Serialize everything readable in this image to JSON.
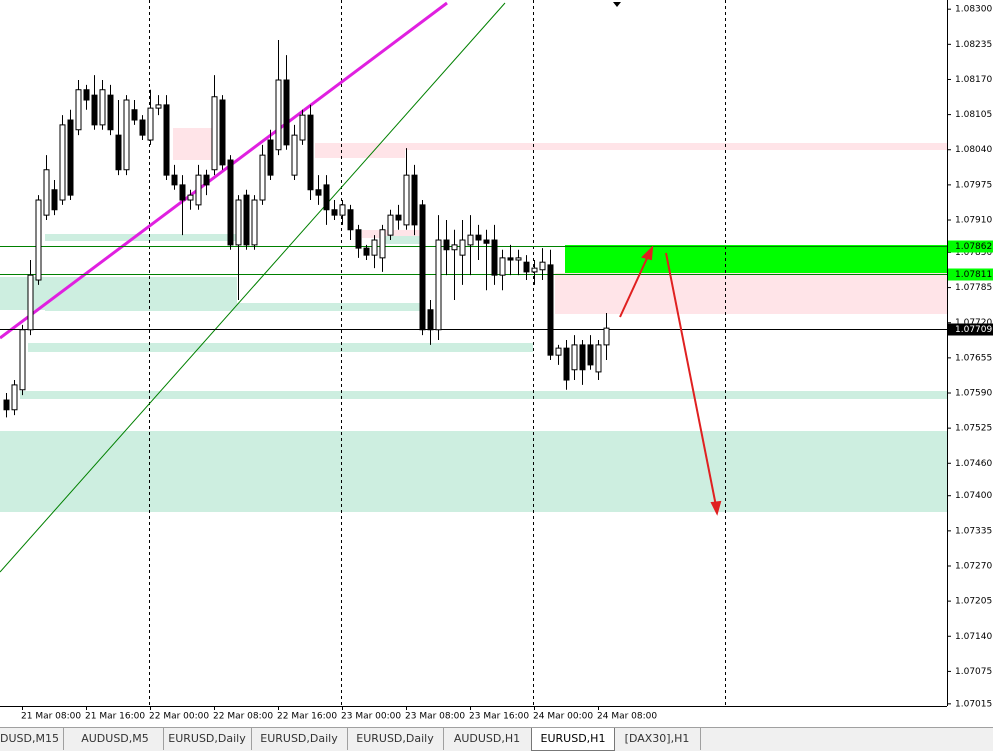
{
  "chart_data": {
    "type": "candlestick",
    "categories": [
      null,
      null,
      "21 Mar 08:00",
      null,
      null,
      null,
      null,
      null,
      null,
      null,
      "21 Mar 16:00",
      null,
      null,
      null,
      null,
      null,
      null,
      null,
      "22 Mar 00:00",
      null,
      null,
      null,
      null,
      null,
      null,
      null,
      "22 Mar 08:00",
      null,
      null,
      null,
      null,
      null,
      null,
      null,
      "22 Mar 16:00",
      null,
      null,
      null,
      null,
      null,
      null,
      null,
      "23 Mar 00:00",
      null,
      null,
      null,
      null,
      null,
      null,
      null,
      "23 Mar 08:00",
      null,
      null,
      null,
      null,
      null,
      null,
      null,
      "23 Mar 16:00",
      null,
      null,
      null,
      null,
      null,
      null,
      null,
      "24 Mar 00:00",
      null,
      null,
      null,
      null,
      null,
      null,
      null,
      "24 Mar 08:00",
      null
    ],
    "open": [
      1.07577,
      1.07559,
      1.07596,
      1.07707,
      1.07799,
      1.07919,
      1.07966,
      1.07947,
      1.08095,
      1.08077,
      1.08151,
      1.08141,
      1.08086,
      1.08141,
      1.08067,
      1.08003,
      1.08114,
      1.08095,
      1.08058,
      1.08117,
      1.08123,
      1.07993,
      1.07975,
      1.07947,
      1.07938,
      1.07993,
      1.08003,
      1.08132,
      1.08021,
      1.07864,
      1.07956,
      1.07864,
      1.07947,
      1.08058,
      1.0804,
      1.08169,
      1.07993,
      1.08058,
      1.08104,
      1.07966,
      1.07975,
      1.07929,
      1.07919,
      1.07929,
      1.07892,
      1.07858,
      1.07845,
      1.0784,
      1.07882,
      1.07919,
      1.07901,
      1.07993,
      1.07938,
      1.07744,
      1.07707,
      1.07873,
      1.07855,
      1.07845,
      1.07864,
      1.07882,
      1.07873,
      1.07873,
      1.07808,
      1.0784,
      1.07836,
      1.07832,
      1.07814,
      1.07818,
      1.07827,
      1.0766,
      1.07673,
      1.07633,
      1.07679,
      1.07679,
      1.07629,
      1.07679
    ],
    "high": [
      1.0759,
      1.07614,
      1.07716,
      1.07836,
      1.07956,
      1.0803,
      1.07984,
      1.08104,
      1.08114,
      1.08169,
      1.0816,
      1.08178,
      1.08169,
      1.0816,
      1.08132,
      1.08141,
      1.08132,
      1.08104,
      1.08151,
      1.08141,
      1.08141,
      1.08012,
      1.07993,
      1.07966,
      1.08012,
      1.08003,
      1.08178,
      1.08141,
      1.0803,
      1.07956,
      1.07966,
      1.07956,
      1.08049,
      1.08077,
      1.08243,
      1.08215,
      1.08086,
      1.08114,
      1.08123,
      1.07993,
      1.07993,
      1.07947,
      1.07947,
      1.07938,
      1.07901,
      1.07864,
      1.07882,
      1.07901,
      1.07929,
      1.07938,
      1.08043,
      1.08012,
      1.07947,
      1.07762,
      1.07919,
      1.0791,
      1.07892,
      1.0791,
      1.07919,
      1.07901,
      1.07892,
      1.07901,
      1.07855,
      1.07864,
      1.07855,
      1.07845,
      1.07836,
      1.07858,
      1.07855,
      1.07679,
      1.07688,
      1.07697,
      1.07688,
      1.07697,
      1.07688,
      1.07738
    ],
    "low": [
      1.07545,
      1.07549,
      1.07586,
      1.07697,
      1.0779,
      1.0791,
      1.07919,
      1.07938,
      1.07947,
      1.08067,
      1.08114,
      1.08077,
      1.08077,
      1.08067,
      1.07993,
      1.07993,
      1.08086,
      1.08058,
      1.08049,
      1.08104,
      1.07984,
      1.07966,
      1.07882,
      1.07929,
      1.07929,
      1.07956,
      1.07993,
      1.08003,
      1.07855,
      1.07762,
      1.07855,
      1.07855,
      1.07938,
      1.07984,
      1.0803,
      1.0804,
      1.07984,
      1.08049,
      1.07947,
      1.07938,
      1.07901,
      1.0791,
      1.07901,
      1.07873,
      1.0784,
      1.07836,
      1.07821,
      1.07814,
      1.07873,
      1.07892,
      1.07892,
      1.07882,
      1.07697,
      1.07679,
      1.07688,
      1.07808,
      1.07762,
      1.0779,
      1.07808,
      1.07836,
      1.0778,
      1.0779,
      1.0778,
      1.07808,
      1.07808,
      1.07799,
      1.0779,
      1.07799,
      1.07651,
      1.07642,
      1.07596,
      1.07614,
      1.07605,
      1.07633,
      1.07614,
      1.07651
    ],
    "close": [
      1.07559,
      1.07605,
      1.07707,
      1.07808,
      1.07947,
      1.08003,
      1.07929,
      1.08086,
      1.07956,
      1.08151,
      1.08132,
      1.08086,
      1.08151,
      1.08077,
      1.08003,
      1.08132,
      1.08095,
      1.08067,
      1.08117,
      1.08123,
      1.07993,
      1.07975,
      1.07947,
      1.07956,
      1.07993,
      1.07975,
      1.08138,
      1.08012,
      1.07864,
      1.07947,
      1.07864,
      1.07947,
      1.0803,
      1.07993,
      1.08169,
      1.08049,
      1.08067,
      1.08104,
      1.07966,
      1.07956,
      1.07929,
      1.07919,
      1.07938,
      1.07892,
      1.07858,
      1.07845,
      1.07873,
      1.07892,
      1.07919,
      1.0791,
      1.07993,
      1.07901,
      1.07707,
      1.07707,
      1.07873,
      1.07855,
      1.07864,
      1.07873,
      1.07882,
      1.07873,
      1.07867,
      1.07808,
      1.0784,
      1.07836,
      1.0784,
      1.07814,
      1.07821,
      1.07832,
      1.0766,
      1.07673,
      1.07614,
      1.07679,
      1.07633,
      1.07642,
      1.07679,
      1.0771
    ],
    "up_color": "#ffffff",
    "down_color": "#000000",
    "ylim": [
      1.07011,
      1.08317
    ],
    "yticks": [
      {
        "value": 1.083,
        "label": "1.08300"
      },
      1.08235,
      {
        "value": 1.0817,
        "label": "1.08170"
      },
      1.08105,
      {
        "value": 1.0804,
        "label": "1.08040"
      },
      1.07975,
      {
        "value": 1.0791,
        "label": "1.07910"
      },
      {
        "value": 1.0785,
        "label": "1.07850"
      },
      1.07785,
      {
        "value": 1.0772,
        "label": "1.07720"
      },
      1.07655,
      {
        "value": 1.0759,
        "label": "1.07590"
      },
      1.07525,
      {
        "value": 1.0746,
        "label": "1.07460"
      },
      {
        "value": 1.074,
        "label": "1.07400"
      },
      1.07335,
      {
        "value": 1.0727,
        "label": "1.07270"
      },
      1.07205,
      {
        "value": 1.0714,
        "label": "1.07140"
      },
      1.07075,
      1.07015
    ],
    "levels": [
      {
        "value": 1.07862,
        "color": "#00ff00"
      },
      {
        "value": 1.07811,
        "color": "#00ff00"
      },
      {
        "value": 1.07709,
        "color": "#000000"
      }
    ],
    "tabs": [
      "DUSD,M15",
      "AUDUSD,M5",
      "EURUSD,Daily",
      "EURUSD,Daily",
      "EURUSD,Daily",
      "AUDUSD,H1",
      "EURUSD,H1",
      "[DAX30],H1"
    ],
    "active_tab": 6
  }
}
